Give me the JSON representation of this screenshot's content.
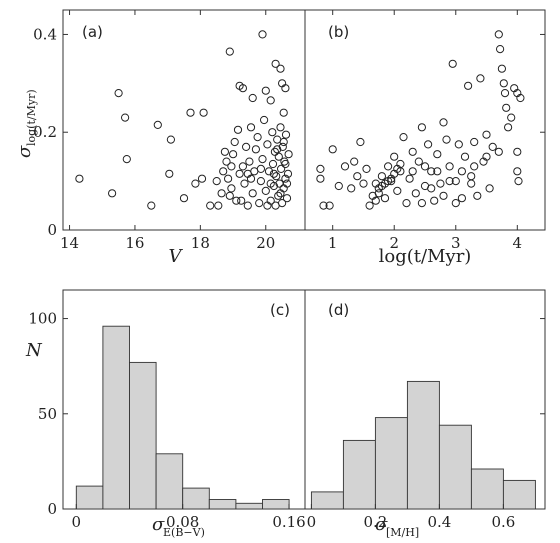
{
  "chart_data": [
    {
      "type": "scatter",
      "panel": "(a)",
      "xlabel": "V",
      "ylabel": "σ_log(t/Myr)",
      "ylabel_main": "σ",
      "ylabel_sub": "log(t/Myr)",
      "xlim": [
        13.8,
        21.2
      ],
      "ylim": [
        0,
        0.45
      ],
      "xticks": [
        14,
        16,
        18,
        20
      ],
      "yticks": [
        0,
        0.2,
        0.4
      ],
      "ytick_labels": [
        "0",
        "0.2",
        "0.4"
      ],
      "points": [
        [
          14.3,
          0.105
        ],
        [
          15.3,
          0.075
        ],
        [
          15.5,
          0.28
        ],
        [
          15.7,
          0.23
        ],
        [
          15.75,
          0.145
        ],
        [
          16.5,
          0.05
        ],
        [
          16.7,
          0.215
        ],
        [
          17.1,
          0.185
        ],
        [
          17.05,
          0.115
        ],
        [
          17.5,
          0.065
        ],
        [
          17.7,
          0.24
        ],
        [
          17.85,
          0.095
        ],
        [
          18.1,
          0.24
        ],
        [
          18.05,
          0.105
        ],
        [
          18.3,
          0.05
        ],
        [
          18.9,
          0.365
        ],
        [
          19.9,
          0.4
        ],
        [
          19.2,
          0.295
        ],
        [
          19.3,
          0.29
        ],
        [
          19.6,
          0.27
        ],
        [
          20.0,
          0.285
        ],
        [
          20.15,
          0.265
        ],
        [
          20.3,
          0.34
        ],
        [
          20.45,
          0.33
        ],
        [
          20.5,
          0.3
        ],
        [
          20.6,
          0.29
        ],
        [
          20.55,
          0.24
        ],
        [
          18.5,
          0.1
        ],
        [
          18.7,
          0.12
        ],
        [
          18.8,
          0.14
        ],
        [
          18.9,
          0.07
        ],
        [
          18.95,
          0.085
        ],
        [
          19.0,
          0.155
        ],
        [
          19.05,
          0.18
        ],
        [
          19.1,
          0.06
        ],
        [
          19.15,
          0.205
        ],
        [
          19.2,
          0.115
        ],
        [
          19.3,
          0.13
        ],
        [
          19.35,
          0.095
        ],
        [
          19.4,
          0.17
        ],
        [
          19.45,
          0.05
        ],
        [
          19.5,
          0.14
        ],
        [
          19.55,
          0.21
        ],
        [
          19.6,
          0.075
        ],
        [
          19.65,
          0.12
        ],
        [
          19.7,
          0.165
        ],
        [
          19.75,
          0.19
        ],
        [
          19.8,
          0.055
        ],
        [
          19.85,
          0.1
        ],
        [
          19.9,
          0.145
        ],
        [
          19.95,
          0.225
        ],
        [
          20.0,
          0.08
        ],
        [
          20.05,
          0.175
        ],
        [
          20.1,
          0.12
        ],
        [
          20.15,
          0.06
        ],
        [
          20.2,
          0.2
        ],
        [
          20.22,
          0.135
        ],
        [
          20.25,
          0.09
        ],
        [
          20.28,
          0.16
        ],
        [
          20.3,
          0.05
        ],
        [
          20.32,
          0.11
        ],
        [
          20.35,
          0.185
        ],
        [
          20.38,
          0.07
        ],
        [
          20.4,
          0.15
        ],
        [
          20.42,
          0.095
        ],
        [
          20.45,
          0.21
        ],
        [
          20.47,
          0.125
        ],
        [
          20.5,
          0.055
        ],
        [
          20.52,
          0.17
        ],
        [
          20.55,
          0.085
        ],
        [
          20.57,
          0.14
        ],
        [
          20.6,
          0.105
        ],
        [
          20.62,
          0.195
        ],
        [
          20.65,
          0.065
        ],
        [
          20.68,
          0.115
        ],
        [
          20.7,
          0.155
        ],
        [
          18.55,
          0.05
        ],
        [
          18.65,
          0.075
        ],
        [
          18.75,
          0.16
        ],
        [
          18.85,
          0.105
        ],
        [
          19.25,
          0.06
        ],
        [
          19.55,
          0.105
        ],
        [
          19.85,
          0.125
        ],
        [
          20.15,
          0.095
        ],
        [
          20.45,
          0.075
        ],
        [
          20.6,
          0.135
        ],
        [
          20.05,
          0.05
        ],
        [
          19.45,
          0.115
        ],
        [
          18.95,
          0.13
        ],
        [
          20.35,
          0.165
        ],
        [
          20.25,
          0.115
        ],
        [
          20.55,
          0.18
        ],
        [
          20.65,
          0.095
        ]
      ]
    },
    {
      "type": "scatter",
      "panel": "(b)",
      "xlabel": "log(t/Myr)",
      "xlim": [
        0.55,
        4.45
      ],
      "ylim": [
        0,
        0.45
      ],
      "xticks": [
        1,
        2,
        3,
        4
      ],
      "points": [
        [
          0.8,
          0.125
        ],
        [
          0.8,
          0.105
        ],
        [
          0.85,
          0.05
        ],
        [
          0.95,
          0.05
        ],
        [
          1.0,
          0.165
        ],
        [
          1.1,
          0.09
        ],
        [
          1.2,
          0.13
        ],
        [
          1.3,
          0.085
        ],
        [
          1.35,
          0.14
        ],
        [
          1.45,
          0.18
        ],
        [
          1.55,
          0.125
        ],
        [
          1.6,
          0.05
        ],
        [
          1.7,
          0.095
        ],
        [
          1.8,
          0.11
        ],
        [
          1.85,
          0.065
        ],
        [
          1.9,
          0.13
        ],
        [
          1.95,
          0.1
        ],
        [
          2.0,
          0.15
        ],
        [
          2.05,
          0.08
        ],
        [
          2.1,
          0.12
        ],
        [
          2.15,
          0.19
        ],
        [
          2.2,
          0.055
        ],
        [
          2.25,
          0.105
        ],
        [
          2.3,
          0.16
        ],
        [
          2.35,
          0.075
        ],
        [
          2.4,
          0.14
        ],
        [
          2.45,
          0.21
        ],
        [
          2.5,
          0.09
        ],
        [
          2.55,
          0.175
        ],
        [
          2.6,
          0.12
        ],
        [
          2.65,
          0.06
        ],
        [
          2.7,
          0.155
        ],
        [
          2.75,
          0.095
        ],
        [
          2.8,
          0.22
        ],
        [
          2.85,
          0.185
        ],
        [
          2.9,
          0.13
        ],
        [
          2.95,
          0.34
        ],
        [
          3.0,
          0.1
        ],
        [
          3.05,
          0.175
        ],
        [
          3.1,
          0.065
        ],
        [
          3.15,
          0.15
        ],
        [
          3.2,
          0.295
        ],
        [
          3.25,
          0.11
        ],
        [
          3.3,
          0.18
        ],
        [
          3.35,
          0.07
        ],
        [
          3.4,
          0.31
        ],
        [
          3.45,
          0.14
        ],
        [
          3.5,
          0.195
        ],
        [
          3.55,
          0.085
        ],
        [
          3.6,
          0.17
        ],
        [
          3.7,
          0.4
        ],
        [
          3.72,
          0.37
        ],
        [
          3.75,
          0.33
        ],
        [
          3.78,
          0.3
        ],
        [
          3.8,
          0.28
        ],
        [
          3.82,
          0.25
        ],
        [
          3.85,
          0.21
        ],
        [
          3.9,
          0.23
        ],
        [
          3.95,
          0.29
        ],
        [
          4.0,
          0.28
        ],
        [
          4.05,
          0.27
        ],
        [
          4.0,
          0.16
        ],
        [
          4.0,
          0.12
        ],
        [
          4.02,
          0.1
        ],
        [
          1.65,
          0.07
        ],
        [
          1.75,
          0.085
        ],
        [
          1.8,
          0.09
        ],
        [
          1.85,
          0.095
        ],
        [
          1.9,
          0.1
        ],
        [
          1.95,
          0.105
        ],
        [
          2.0,
          0.115
        ],
        [
          1.7,
          0.06
        ],
        [
          1.75,
          0.075
        ],
        [
          2.05,
          0.125
        ],
        [
          2.1,
          0.135
        ],
        [
          2.3,
          0.12
        ],
        [
          2.5,
          0.13
        ],
        [
          2.7,
          0.12
        ],
        [
          2.9,
          0.1
        ],
        [
          3.1,
          0.12
        ],
        [
          3.3,
          0.13
        ],
        [
          3.5,
          0.15
        ],
        [
          3.7,
          0.16
        ],
        [
          2.6,
          0.085
        ],
        [
          2.8,
          0.07
        ],
        [
          3.0,
          0.055
        ],
        [
          1.5,
          0.095
        ],
        [
          1.4,
          0.11
        ],
        [
          2.45,
          0.055
        ],
        [
          3.25,
          0.095
        ]
      ]
    },
    {
      "type": "bar",
      "panel": "(c)",
      "xlabel": "σ_E(B−V)",
      "xlabel_main": "σ",
      "xlabel_sub": "E(B−V)",
      "ylabel": "N",
      "xlim": [
        -0.01,
        0.172
      ],
      "ylim": [
        0,
        115
      ],
      "xticks": [
        0,
        0.08,
        0.16
      ],
      "xtick_labels": [
        "0",
        "0.08",
        "0.16"
      ],
      "yticks": [
        0,
        50,
        100
      ],
      "bin_edges": [
        0,
        0.02,
        0.04,
        0.06,
        0.08,
        0.1,
        0.12,
        0.14,
        0.16
      ],
      "values": [
        12,
        96,
        77,
        29,
        11,
        5,
        3,
        5
      ]
    },
    {
      "type": "bar",
      "panel": "(d)",
      "xlabel": "σ_[M/H]",
      "xlabel_main": "σ",
      "xlabel_sub": "[M/H]",
      "xlim": [
        -0.02,
        0.73
      ],
      "ylim": [
        0,
        115
      ],
      "xticks": [
        0,
        0.2,
        0.4,
        0.6
      ],
      "xtick_labels": [
        "0",
        "0.2",
        "0.4",
        "0.6"
      ],
      "bin_edges": [
        0,
        0.1,
        0.2,
        0.3,
        0.4,
        0.5,
        0.6,
        0.7
      ],
      "values": [
        9,
        36,
        48,
        67,
        44,
        21,
        15
      ]
    }
  ]
}
